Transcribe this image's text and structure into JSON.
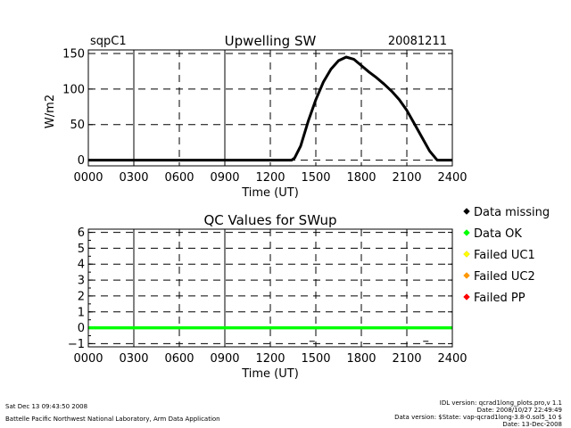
{
  "chart_data": [
    {
      "type": "line",
      "site": "sqpC1",
      "title": "Upwelling SW",
      "date": "20081211",
      "xlabel": "Time (UT)",
      "ylabel": "W/m2",
      "xlim": [
        0,
        2400
      ],
      "ylim": [
        -8,
        155
      ],
      "xticks": [
        0,
        300,
        600,
        900,
        1200,
        1500,
        1800,
        2100,
        2400
      ],
      "xtick_labels": [
        "0000",
        "0300",
        "0600",
        "0900",
        "1200",
        "1500",
        "1800",
        "2100",
        "2400"
      ],
      "yticks": [
        0,
        50,
        100,
        150
      ],
      "ytick_labels": [
        "0",
        "50",
        "100",
        "150"
      ],
      "grid": true,
      "series": [
        {
          "name": "SWup",
          "x": [
            0,
            1340,
            1360,
            1400,
            1450,
            1500,
            1550,
            1600,
            1650,
            1700,
            1750,
            1800,
            1850,
            1900,
            1950,
            2000,
            2050,
            2100,
            2150,
            2200,
            2250,
            2300,
            2340,
            2400
          ],
          "y": [
            0,
            0,
            3,
            20,
            55,
            85,
            110,
            128,
            140,
            145,
            142,
            133,
            124,
            116,
            107,
            97,
            85,
            70,
            51,
            32,
            13,
            0,
            0,
            0
          ]
        }
      ]
    },
    {
      "type": "line",
      "title": "QC Values for SWup",
      "xlabel": "Time (UT)",
      "ylabel": "",
      "xlim": [
        0,
        2400
      ],
      "ylim": [
        -1.2,
        6.2
      ],
      "xticks": [
        0,
        300,
        600,
        900,
        1200,
        1500,
        1800,
        2100,
        2400
      ],
      "xtick_labels": [
        "0000",
        "0300",
        "0600",
        "0900",
        "1200",
        "1500",
        "1800",
        "2100",
        "2400"
      ],
      "yticks": [
        -1,
        0,
        1,
        2,
        3,
        4,
        5,
        6
      ],
      "ytick_labels": [
        "−1",
        "0",
        "1",
        "2",
        "3",
        "4",
        "5",
        "6"
      ],
      "grid": true,
      "series": [
        {
          "name": "QC",
          "color": "#00ff00",
          "x": [
            0,
            2400
          ],
          "y": [
            0,
            0
          ]
        }
      ],
      "missing_points": [
        {
          "x": 1475,
          "y": -0.85
        },
        {
          "x": 2225,
          "y": -0.85
        }
      ]
    }
  ],
  "legend": [
    {
      "label": "Data missing",
      "color": "#000000"
    },
    {
      "label": "Data OK",
      "color": "#00ff00"
    },
    {
      "label": "Failed UC1",
      "color": "#ffff00"
    },
    {
      "label": "Failed UC2",
      "color": "#ff9900"
    },
    {
      "label": "Failed PP",
      "color": "#ff0000"
    }
  ],
  "footer": {
    "left_line1": "Sat Dec 13 09:43:50 2008",
    "left_line2": "Battelle Pacific Northwest National Laboratory, Arm Data Application",
    "right_line1": "IDL version: qcrad1long_plots.pro,v 1.1",
    "right_line2": "Date: 2008/10/27 22:49:49",
    "right_line3": "Data version: $State: vap-qcrad1long-3.8-0.sol5_10 $",
    "right_line4": "Date: 13-Dec-2008"
  }
}
